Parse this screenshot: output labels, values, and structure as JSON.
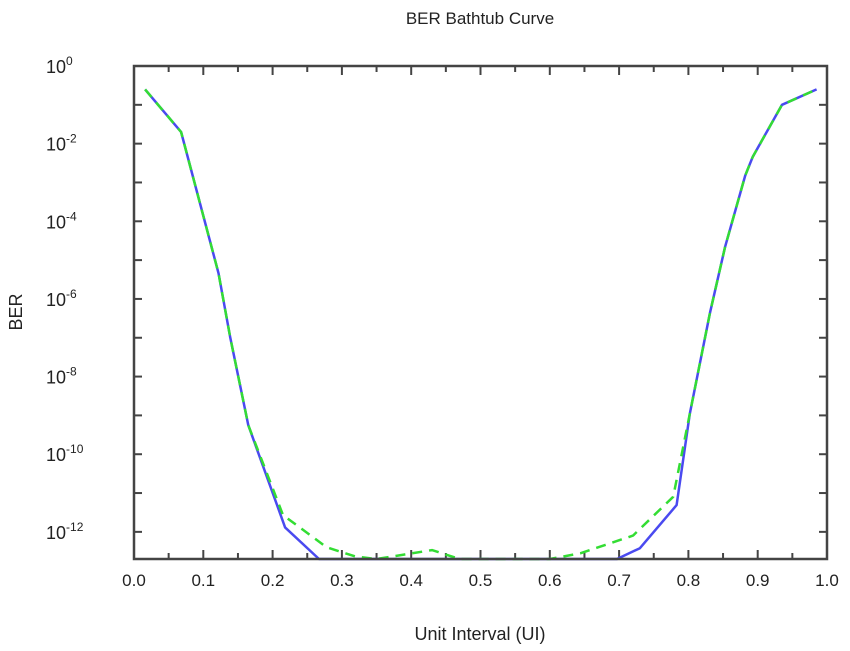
{
  "chart_data": {
    "type": "line",
    "title": "BER Bathtub Curve",
    "xlabel": "Unit Interval (UI)",
    "ylabel": "BER",
    "xlim": [
      0.0,
      1.0
    ],
    "ylim": [
      2e-13,
      1
    ],
    "yscale": "log",
    "grid": false,
    "legend": "none",
    "x_ticks": [
      "0.0",
      "0.1",
      "0.2",
      "0.3",
      "0.4",
      "0.5",
      "0.6",
      "0.7",
      "0.8",
      "0.9",
      "1.0"
    ],
    "y_ticks": [
      {
        "base": "10",
        "exp": "0"
      },
      {
        "base": "10",
        "exp": "-2"
      },
      {
        "base": "10",
        "exp": "-4"
      },
      {
        "base": "10",
        "exp": "-6"
      },
      {
        "base": "10",
        "exp": "-8"
      },
      {
        "base": "10",
        "exp": "-10"
      },
      {
        "base": "10",
        "exp": "-12"
      }
    ],
    "series": [
      {
        "style": "solid",
        "color": "#4a4af0",
        "x": [
          0.016,
          0.068,
          0.122,
          0.139,
          0.165,
          0.218,
          0.267,
          0.697,
          0.73,
          0.783,
          0.802,
          0.831,
          0.853,
          0.882,
          0.893,
          0.935,
          0.985
        ],
        "y": [
          0.25,
          0.02,
          4.6e-06,
          1e-07,
          5.6e-10,
          1.3e-12,
          2e-13,
          2e-13,
          3.8e-13,
          4.9e-12,
          1.1e-09,
          4.3e-07,
          2.2e-05,
          0.0015,
          0.0046,
          0.1,
          0.25
        ]
      },
      {
        "style": "dashed",
        "color": "#33dd33",
        "x": [
          0.016,
          0.068,
          0.122,
          0.139,
          0.165,
          0.215,
          0.278,
          0.32,
          0.35,
          0.43,
          0.47,
          0.6,
          0.644,
          0.72,
          0.778,
          0.802,
          0.831,
          0.853,
          0.882,
          0.893,
          0.935,
          0.985
        ],
        "y": [
          0.25,
          0.02,
          4.6e-06,
          1e-07,
          5.6e-10,
          2.7e-12,
          4e-13,
          2.3e-13,
          2e-13,
          3.4e-13,
          2e-13,
          2e-13,
          2.8e-13,
          8e-13,
          8e-12,
          1.1e-09,
          4.3e-07,
          2.2e-05,
          0.0015,
          0.0046,
          0.1,
          0.25
        ]
      }
    ]
  }
}
